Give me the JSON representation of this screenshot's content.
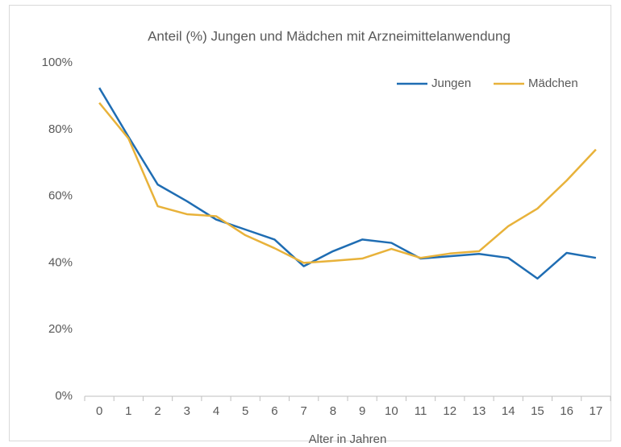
{
  "chart_data": {
    "type": "line",
    "title": "Anteil (%) Jungen und Mädchen mit Arzneimittelanwendung",
    "x_label": "Alter in Jahren",
    "categories": [
      "0",
      "1",
      "2",
      "3",
      "4",
      "5",
      "6",
      "7",
      "8",
      "9",
      "10",
      "11",
      "12",
      "13",
      "14",
      "15",
      "16",
      "17"
    ],
    "series": [
      {
        "name": "Jungen",
        "color": "#1f6db3",
        "values": [
          92.5,
          77.8,
          63.5,
          58.5,
          53,
          50,
          47,
          39,
          43.5,
          47,
          46,
          41.3,
          42,
          42.7,
          41.5,
          35.3,
          43,
          41.5
        ]
      },
      {
        "name": "Mädchen",
        "color": "#e8b23a",
        "values": [
          88,
          77.3,
          57,
          54.6,
          54,
          48.3,
          44.4,
          40,
          40.6,
          41.3,
          44.2,
          41.5,
          42.8,
          43.5,
          51,
          56.3,
          64.7,
          74
        ]
      }
    ],
    "ylim": [
      0,
      100
    ],
    "yticks": [
      {
        "value": 0,
        "label": "0%"
      },
      {
        "value": 20,
        "label": "20%"
      },
      {
        "value": 40,
        "label": "40%"
      },
      {
        "value": 60,
        "label": "60%"
      },
      {
        "value": 80,
        "label": "80%"
      },
      {
        "value": 100,
        "label": "100%"
      }
    ],
    "grid": false,
    "legend": "top-right"
  }
}
